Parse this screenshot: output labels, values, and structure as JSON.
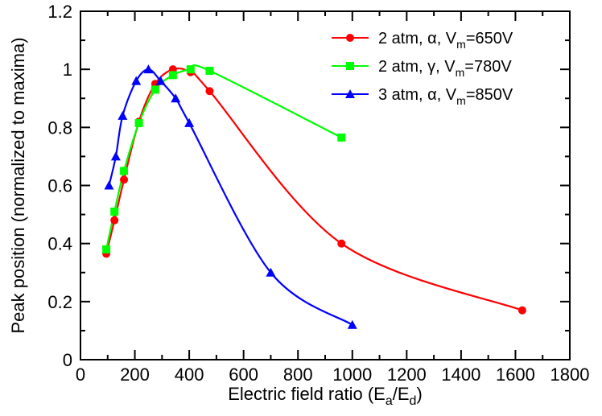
{
  "chart_data": {
    "type": "line",
    "xlabel": "Electric field ratio (E",
    "xlabel_sub1": "a",
    "xlabel_mid": "/E",
    "xlabel_sub2": "d",
    "xlabel_end": ")",
    "ylabel": "Peak position (normalized to maxima)",
    "xlim": [
      0,
      1800
    ],
    "ylim": [
      0,
      1.2
    ],
    "xticks": [
      0,
      200,
      400,
      600,
      800,
      1000,
      1200,
      1400,
      1600,
      1800
    ],
    "yticks": [
      0,
      0.2,
      0.4,
      0.6,
      0.8,
      1,
      1.2
    ],
    "xtick_labels": [
      "0",
      "200",
      "400",
      "600",
      "800",
      "1000",
      "1200",
      "1400",
      "1600",
      "1800"
    ],
    "ytick_labels": [
      "0",
      "0.2",
      "0.4",
      "0.6",
      "0.8",
      "1",
      "1.2"
    ],
    "legend_position": "top-right",
    "series": [
      {
        "name": "2 atm, α, V",
        "name_sub": "m",
        "name_tail": "=650V",
        "color": "#ff0000",
        "marker": "circle",
        "x": [
          95,
          125,
          160,
          215,
          275,
          340,
          405,
          475,
          960,
          1625
        ],
        "y": [
          0.365,
          0.48,
          0.62,
          0.82,
          0.95,
          1.0,
          0.99,
          0.925,
          0.4,
          0.17
        ]
      },
      {
        "name": "2 atm, γ, V",
        "name_sub": "m",
        "name_tail": "=780V",
        "color": "#00ff00",
        "marker": "square",
        "x": [
          95,
          125,
          160,
          215,
          275,
          340,
          405,
          475,
          960
        ],
        "y": [
          0.38,
          0.51,
          0.65,
          0.815,
          0.93,
          0.98,
          1.0,
          0.995,
          0.765
        ]
      },
      {
        "name": "3 atm, α, V",
        "name_sub": "m",
        "name_tail": "=850V",
        "color": "#0000ff",
        "marker": "triangle",
        "x": [
          105,
          130,
          155,
          205,
          250,
          295,
          350,
          400,
          700,
          1000
        ],
        "y": [
          0.6,
          0.7,
          0.84,
          0.96,
          1.0,
          0.96,
          0.9,
          0.815,
          0.3,
          0.12
        ]
      }
    ]
  }
}
